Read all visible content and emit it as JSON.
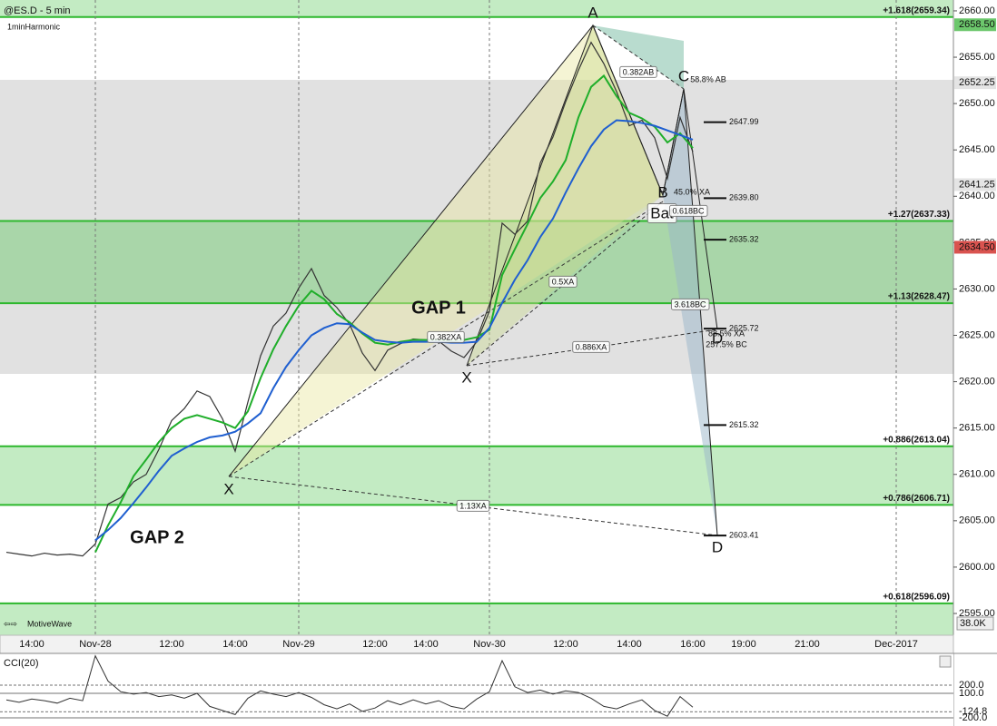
{
  "chart_data": {
    "type": "line",
    "title": "@ES.D - 5 min",
    "subtitle": "1minHarmonic",
    "categories": [
      null,
      null,
      "14:00",
      null,
      null,
      null,
      null,
      "Nov-28",
      null,
      null,
      null,
      null,
      null,
      "12:00",
      null,
      null,
      null,
      null,
      "14:00",
      null,
      null,
      null,
      null,
      "Nov-29",
      null,
      null,
      null,
      null,
      null,
      "12:00",
      null,
      null,
      null,
      "14:00",
      null,
      null,
      null,
      null,
      "Nov-30",
      null,
      null,
      null,
      null,
      null,
      "12:00",
      null,
      null,
      null,
      null,
      "14:00",
      null,
      null,
      null,
      null,
      "16:00",
      null,
      null,
      null,
      "19:00",
      null,
      null,
      null,
      null,
      "21:00",
      null,
      null,
      null,
      null,
      null,
      null,
      "Dec-2017",
      null,
      null,
      null,
      null
    ],
    "series": [
      {
        "color": "#333333",
        "values": [
          2601.6,
          2601.4,
          2601.2,
          2601.5,
          2601.3,
          2601.4,
          2601.2,
          2602.5,
          2606.8,
          2607.5,
          2609.2,
          2610.0,
          2612.7,
          2615.8,
          2617.1,
          2619.0,
          2618.4,
          2616.0,
          2612.5,
          2617.8,
          2622.8,
          2626.0,
          2627.4,
          2630.1,
          2632.2,
          2629.3,
          2628.0,
          2626.2,
          2623.1,
          2621.2,
          2623.4,
          2624.1,
          2624.6,
          2624.5,
          2624.4,
          2623.3,
          2622.6,
          2624.3,
          2627.6,
          2637.1,
          2635.9,
          2637.3,
          2643.6,
          2646.4,
          2650.2,
          2653.6,
          2656.6,
          2654.3,
          2651.3,
          2647.6,
          2648.2,
          2646.3,
          2641.9,
          2648.5,
          2644.8,
          null,
          null,
          null,
          null,
          null,
          null,
          null,
          null,
          null,
          null,
          null,
          null,
          null,
          null,
          null,
          null,
          null,
          null,
          null,
          null
        ]
      },
      {
        "color": "#1fae2a",
        "values": [
          null,
          null,
          null,
          null,
          null,
          null,
          null,
          2601.6,
          2604.5,
          2607.0,
          2609.8,
          2611.6,
          2613.5,
          2615.0,
          2616.0,
          2616.4,
          2616.0,
          2615.6,
          2615.0,
          2616.8,
          2620.4,
          2623.5,
          2626.0,
          2628.2,
          2629.8,
          2628.9,
          2627.3,
          2626.4,
          2625.2,
          2624.2,
          2624.0,
          2624.3,
          2624.5,
          2624.5,
          2624.5,
          2624.4,
          2624.5,
          2624.8,
          2625.6,
          2631.5,
          2634.3,
          2637.0,
          2639.8,
          2641.6,
          2643.9,
          2648.5,
          2651.8,
          2653.0,
          2650.8,
          2649.0,
          2648.4,
          2647.5,
          2645.8,
          2646.8,
          2645.2,
          null,
          null,
          null,
          null,
          null,
          null,
          null,
          null,
          null,
          null,
          null,
          null,
          null,
          null,
          null,
          null,
          null,
          null,
          null,
          null
        ]
      },
      {
        "color": "#1f5fd0",
        "values": [
          null,
          null,
          null,
          null,
          null,
          null,
          null,
          2602.9,
          2604.0,
          2605.3,
          2606.9,
          2608.6,
          2610.4,
          2612.0,
          2612.8,
          2613.5,
          2614.0,
          2614.2,
          2614.6,
          2615.5,
          2616.6,
          2619.3,
          2621.6,
          2623.4,
          2625.0,
          2625.8,
          2626.3,
          2626.2,
          2625.3,
          2624.5,
          2624.3,
          2624.2,
          2624.3,
          2624.3,
          2624.3,
          2624.2,
          2624.2,
          2624.3,
          2625.8,
          2628.5,
          2631.0,
          2633.1,
          2635.6,
          2637.6,
          2640.4,
          2643.0,
          2645.4,
          2647.2,
          2648.2,
          2648.1,
          2647.9,
          2647.6,
          2647.1,
          2646.6,
          2646.1,
          null,
          null,
          null,
          null,
          null,
          null,
          null,
          null,
          null,
          null,
          null,
          null,
          null,
          null,
          null,
          null,
          null,
          null,
          null,
          null
        ]
      }
    ],
    "ylim": [
      2592.65,
      2661.17
    ],
    "yticks": [
      {
        "value": 2595,
        "label": "2595.00"
      },
      {
        "value": 2600,
        "label": "2600.00"
      },
      {
        "value": 2605,
        "label": "2605.00"
      },
      {
        "value": 2610,
        "label": "2610.00"
      },
      {
        "value": 2615,
        "label": "2615.00"
      },
      {
        "value": 2620,
        "label": "2620.00"
      },
      {
        "value": 2625,
        "label": "2625.00"
      },
      {
        "value": 2630,
        "label": "2630.00"
      },
      {
        "value": 2635,
        "label": "2635.00"
      },
      {
        "value": 2640,
        "label": "2640.00"
      },
      {
        "value": 2645,
        "label": "2645.00"
      },
      {
        "value": 2650,
        "label": "2650.00"
      },
      {
        "value": 2655,
        "label": "2655.00"
      },
      {
        "value": 2660,
        "label": "2660.00"
      }
    ],
    "price_markers": [
      {
        "value": 2658.5,
        "label": "2658.50",
        "color": "#6cc76c"
      },
      {
        "value": 2652.25,
        "label": "2652.25",
        "color": "#e4e4e4"
      },
      {
        "value": 2641.25,
        "label": "2641.25",
        "color": "#e4e4e4"
      },
      {
        "value": 2634.5,
        "label": "2634.50",
        "color": "#d9534f"
      }
    ],
    "zones": [
      {
        "from": 2620.84,
        "to": 2652.56,
        "color": "#dcdcdc"
      },
      {
        "from": 2659.34,
        "to": 2661.17,
        "color": "#b8e8b8"
      },
      {
        "from": 2628.47,
        "to": 2637.33,
        "color": "#9fd49f"
      },
      {
        "from": 2606.71,
        "to": 2613.04,
        "color": "#b8e8b8"
      },
      {
        "from": 2592.65,
        "to": 2596.09,
        "color": "#b8e8b8"
      }
    ],
    "levels": [
      {
        "value": 2659.34,
        "label": "+1.618(2659.34)"
      },
      {
        "value": 2637.33,
        "label": "+1.27(2637.33)"
      },
      {
        "value": 2628.47,
        "label": "+1.13(2628.47)"
      },
      {
        "value": 2613.04,
        "label": "+0.886(2613.04)"
      },
      {
        "value": 2606.71,
        "label": "+0.786(2606.71)"
      },
      {
        "value": 2596.09,
        "label": "+0.618(2596.09)"
      }
    ],
    "level_color": "#2db82d",
    "pattern_levels": [
      {
        "value": 2647.99,
        "label": "2647.99"
      },
      {
        "value": 2639.8,
        "label": "2639.80"
      },
      {
        "value": 2635.32,
        "label": "2635.32"
      },
      {
        "value": 2625.72,
        "label": "2625.72"
      },
      {
        "value": 2615.32,
        "label": "2615.32"
      },
      {
        "value": 2603.41,
        "label": "2603.41"
      }
    ],
    "annotations": [
      "A",
      "B",
      "C",
      "D",
      "D",
      "X",
      "X",
      "Bat",
      "0.382AB",
      "58.8% AB",
      "45.0% XA",
      "0.618BC",
      "0.5XA",
      "3.618BC",
      "88.5% XA",
      "257.5% BC",
      "0.382XA",
      "0.886XA",
      "1.13XA",
      "GAP 1",
      "GAP 2"
    ],
    "footer_label": "MotiveWave",
    "volume_label": "38.0K",
    "cci": {
      "title": "CCI(20)",
      "ylim": [
        -300,
        589
      ],
      "yticks": [
        {
          "value": 200,
          "label": "200.0"
        },
        {
          "value": 100,
          "label": "100.0"
        },
        {
          "value": -124.8,
          "label": "-124.8"
        },
        {
          "value": -200,
          "label": "-200.0"
        }
      ],
      "values": [
        20,
        -10,
        30,
        10,
        -20,
        40,
        10,
        560,
        250,
        120,
        90,
        110,
        60,
        80,
        40,
        100,
        -60,
        -110,
        -160,
        40,
        130,
        90,
        60,
        110,
        50,
        -40,
        -90,
        -30,
        -120,
        -80,
        10,
        -40,
        20,
        -30,
        10,
        -60,
        -90,
        30,
        120,
        500,
        180,
        110,
        140,
        90,
        130,
        110,
        40,
        -60,
        -90,
        -30,
        20,
        -110,
        -180,
        60,
        -70,
        null,
        null,
        null,
        null,
        null,
        null,
        null,
        null,
        null,
        null,
        null,
        null,
        null,
        null,
        null,
        null,
        null,
        null,
        null,
        null
      ],
      "color": "#333333"
    }
  }
}
